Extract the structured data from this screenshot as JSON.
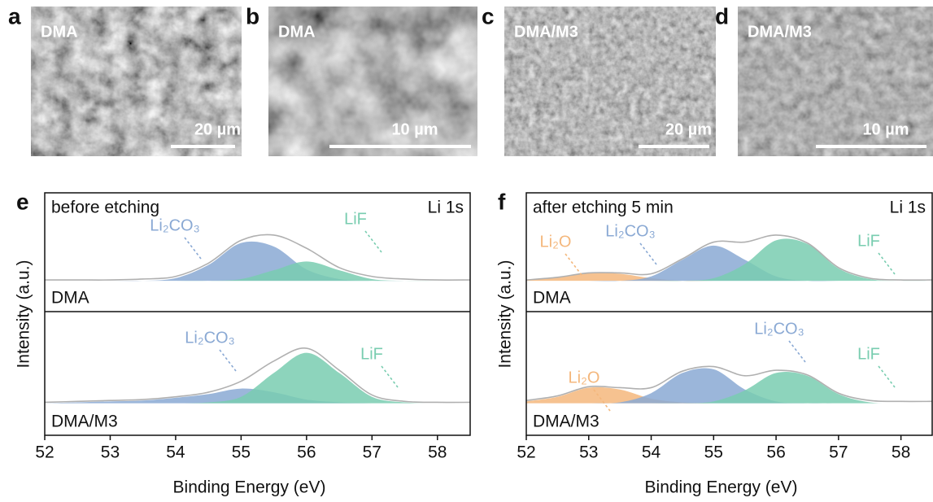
{
  "sem_images": [
    {
      "panel": "a",
      "sample": "DMA",
      "scale_bar": "20 µm"
    },
    {
      "panel": "b",
      "sample": "DMA",
      "scale_bar": "10 µm"
    },
    {
      "panel": "c",
      "sample": "DMA/M3",
      "scale_bar": "20 µm"
    },
    {
      "panel": "d",
      "sample": "DMA/M3",
      "scale_bar": "10 µm"
    }
  ],
  "chart_data": [
    {
      "type": "line",
      "panel": "e",
      "note": "before etching",
      "core_level": "Li 1s",
      "xlabel": "Binding Energy (eV)",
      "ylabel": "Intensity (a.u.)",
      "xlim": [
        52,
        58.5
      ],
      "xticks": [
        52,
        53,
        54,
        55,
        56,
        57,
        58
      ],
      "x": [
        52,
        52.5,
        53,
        53.5,
        54,
        54.5,
        55,
        55.5,
        56,
        56.5,
        57,
        57.5,
        58,
        58.5
      ],
      "subplots": [
        {
          "sample": "DMA",
          "ylim": [
            -35,
            100
          ],
          "envelope": {
            "color": "#b0b0b0",
            "values": [
              1,
              1,
              1,
              2,
              5,
              20,
              46,
              52,
              37,
              15,
              5,
              2,
              1,
              1
            ]
          },
          "series": [
            {
              "name": "Li₂CO₃",
              "color": "#8aa9d4",
              "values": [
                0,
                0,
                0,
                0,
                3,
                18,
                43,
                39,
                13,
                2,
                0,
                0,
                0,
                0
              ]
            },
            {
              "name": "LiF",
              "color": "#79cdb0",
              "values": [
                0,
                0,
                0,
                0,
                0,
                0,
                2,
                12,
                22,
                12,
                2,
                0,
                0,
                0
              ]
            }
          ]
        },
        {
          "sample": "DMA/M3",
          "ylim": [
            -35,
            100
          ],
          "envelope": {
            "color": "#b0b0b0",
            "values": [
              1,
              2,
              3,
              4,
              7,
              12,
              24,
              46,
              60,
              36,
              9,
              2,
              1,
              1
            ]
          },
          "series": [
            {
              "name": "Li₂CO₃",
              "color": "#8aa9d4",
              "values": [
                0,
                1,
                2,
                3,
                6,
                10,
                16,
                12,
                4,
                1,
                0,
                0,
                0,
                0
              ]
            },
            {
              "name": "LiF",
              "color": "#79cdb0",
              "values": [
                0,
                0,
                0,
                0,
                0,
                1,
                7,
                33,
                55,
                33,
                7,
                1,
                0,
                0
              ]
            }
          ]
        }
      ]
    },
    {
      "type": "line",
      "panel": "f",
      "note": "after etching 5 min",
      "core_level": "Li 1s",
      "xlabel": "Binding Energy (eV)",
      "ylabel": "Intensity (a.u.)",
      "xlim": [
        52,
        58.5
      ],
      "xticks": [
        52,
        53,
        54,
        55,
        56,
        57,
        58
      ],
      "x": [
        52,
        52.5,
        53,
        53.5,
        54,
        54.5,
        55,
        55.5,
        56,
        56.5,
        57,
        57.5,
        58,
        58.5
      ],
      "subplots": [
        {
          "sample": "DMA",
          "ylim": [
            -35,
            100
          ],
          "envelope": {
            "color": "#b0b0b0",
            "values": [
              1,
              4,
              9,
              9,
              8,
              25,
              44,
              44,
              52,
              43,
              15,
              3,
              1,
              1
            ]
          },
          "series": [
            {
              "name": "Li₂O",
              "color": "#f4b77c",
              "values": [
                1,
                4,
                9,
                8,
                3,
                0,
                0,
                0,
                0,
                0,
                0,
                0,
                0,
                0
              ]
            },
            {
              "name": "Li₂CO₃",
              "color": "#8aa9d4",
              "values": [
                0,
                0,
                0,
                0,
                5,
                24,
                40,
                24,
                5,
                0,
                0,
                0,
                0,
                0
              ]
            },
            {
              "name": "LiF",
              "color": "#79cdb0",
              "values": [
                0,
                0,
                0,
                0,
                0,
                0,
                3,
                19,
                46,
                42,
                14,
                2,
                0,
                0
              ]
            }
          ]
        },
        {
          "sample": "DMA/M3",
          "ylim": [
            -35,
            100
          ],
          "envelope": {
            "color": "#b0b0b0",
            "values": [
              3,
              8,
              18,
              17,
              17,
              35,
              40,
              30,
              36,
              31,
              11,
              3,
              2,
              2
            ]
          },
          "series": [
            {
              "name": "Li₂O",
              "color": "#f4b77c",
              "values": [
                2,
                7,
                17,
                15,
                5,
                1,
                0,
                0,
                0,
                0,
                0,
                0,
                0,
                0
              ]
            },
            {
              "name": "Li₂CO₃",
              "color": "#8aa9d4",
              "values": [
                0,
                0,
                0,
                1,
                11,
                33,
                37,
                15,
                2,
                0,
                0,
                0,
                0,
                0
              ]
            },
            {
              "name": "LiF",
              "color": "#79cdb0",
              "values": [
                0,
                0,
                0,
                0,
                0,
                0,
                2,
                14,
                33,
                30,
                10,
                1,
                0,
                0
              ]
            }
          ]
        }
      ]
    }
  ]
}
